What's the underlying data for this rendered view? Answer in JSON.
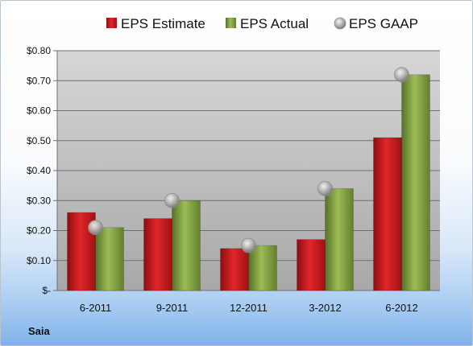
{
  "chart_data": {
    "type": "bar",
    "company": "Saia",
    "categories": [
      "6-2011",
      "9-2011",
      "12-2011",
      "3-2012",
      "6-2012"
    ],
    "series": [
      {
        "name": "EPS Estimate",
        "kind": "bar",
        "color": "#c0181b",
        "values": [
          0.26,
          0.24,
          0.14,
          0.17,
          0.51
        ]
      },
      {
        "name": "EPS Actual",
        "kind": "bar",
        "color": "#7a9a3a",
        "values": [
          0.21,
          0.3,
          0.15,
          0.34,
          0.72
        ]
      },
      {
        "name": "EPS GAAP",
        "kind": "marker",
        "color": "#a8a8a8",
        "values": [
          0.21,
          0.3,
          0.15,
          0.34,
          0.72
        ]
      }
    ],
    "ylim": [
      0,
      0.8
    ],
    "yticks": [
      0,
      0.1,
      0.2,
      0.3,
      0.4,
      0.5,
      0.6,
      0.7,
      0.8
    ],
    "ytick_labels": [
      "$-",
      "$0.10",
      "$0.20",
      "$0.30",
      "$0.40",
      "$0.50",
      "$0.60",
      "$0.70",
      "$0.80"
    ],
    "grid": true,
    "legend_position": "top-center"
  }
}
